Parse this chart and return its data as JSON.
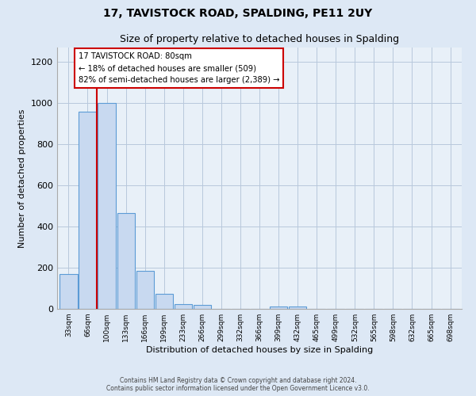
{
  "title": "17, TAVISTOCK ROAD, SPALDING, PE11 2UY",
  "subtitle": "Size of property relative to detached houses in Spalding",
  "xlabel": "Distribution of detached houses by size in Spalding",
  "ylabel": "Number of detached properties",
  "bin_labels": [
    "33sqm",
    "66sqm",
    "100sqm",
    "133sqm",
    "166sqm",
    "199sqm",
    "233sqm",
    "266sqm",
    "299sqm",
    "332sqm",
    "366sqm",
    "399sqm",
    "432sqm",
    "465sqm",
    "499sqm",
    "532sqm",
    "565sqm",
    "598sqm",
    "632sqm",
    "665sqm",
    "698sqm"
  ],
  "bar_heights": [
    170,
    960,
    1000,
    465,
    185,
    75,
    22,
    18,
    0,
    0,
    0,
    12,
    10,
    0,
    0,
    0,
    0,
    0,
    0,
    0,
    0
  ],
  "bar_color": "#c8d9f0",
  "bar_edge_color": "#5b9bd5",
  "property_line_x": 1.47,
  "property_line_color": "#cc0000",
  "annotation_title": "17 TAVISTOCK ROAD: 80sqm",
  "annotation_line2": "← 18% of detached houses are smaller (509)",
  "annotation_line3": "82% of semi-detached houses are larger (2,389) →",
  "annotation_box_color": "#ffffff",
  "annotation_box_edge_color": "#cc0000",
  "ylim": [
    0,
    1270
  ],
  "yticks": [
    0,
    200,
    400,
    600,
    800,
    1000,
    1200
  ],
  "footer_line1": "Contains HM Land Registry data © Crown copyright and database right 2024.",
  "footer_line2": "Contains public sector information licensed under the Open Government Licence v3.0.",
  "background_color": "#dde8f5",
  "plot_background_color": "#e8f0f8",
  "grid_color": "#b8c8dc"
}
